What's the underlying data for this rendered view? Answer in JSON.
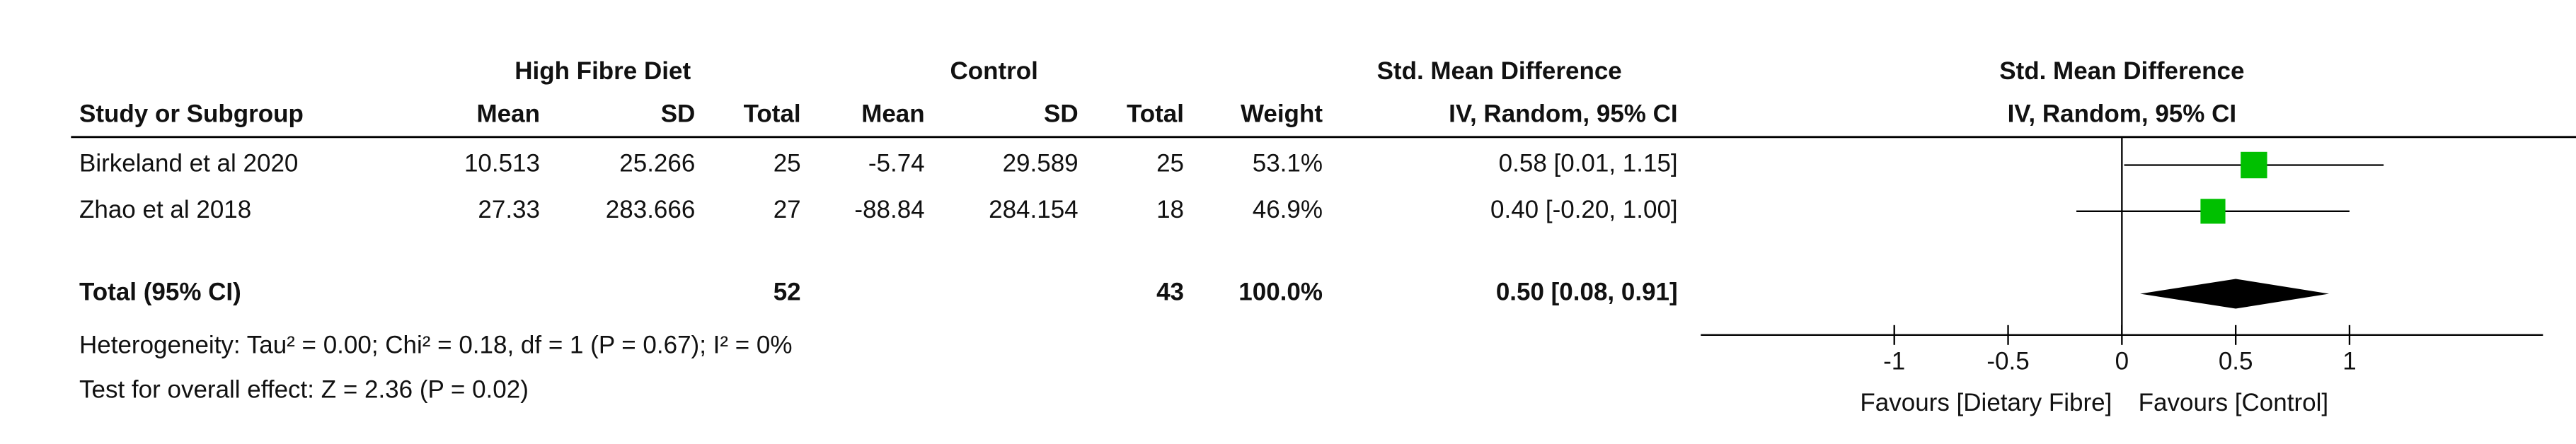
{
  "chart_data": {
    "type": "forest",
    "headers": {
      "groups": [
        "High Fibre Diet",
        "Control",
        "Std. Mean Difference"
      ],
      "columns": [
        "Study or Subgroup",
        "Mean",
        "SD",
        "Total",
        "Mean",
        "SD",
        "Total",
        "Weight",
        "IV, Random, 95% CI"
      ]
    },
    "plot_title": "Std. Mean Difference",
    "plot_subtitle": "IV, Random, 95% CI",
    "studies": [
      {
        "name": "Birkeland et al 2020",
        "exp_mean": 10.513,
        "exp_sd": 25.266,
        "exp_total": 25,
        "ctrl_mean": -5.74,
        "ctrl_sd": 29.589,
        "ctrl_total": 25,
        "weight": 53.1,
        "weight_label": "53.1%",
        "smd": 0.58,
        "ci_low": 0.01,
        "ci_high": 1.15,
        "ci_label": "0.58 [0.01, 1.15]"
      },
      {
        "name": "Zhao et al 2018",
        "exp_mean": 27.33,
        "exp_sd": 283.666,
        "exp_total": 27,
        "ctrl_mean": -88.84,
        "ctrl_sd": 284.154,
        "ctrl_total": 18,
        "weight": 46.9,
        "weight_label": "46.9%",
        "smd": 0.4,
        "ci_low": -0.2,
        "ci_high": 1.0,
        "ci_label": "0.40 [-0.20, 1.00]"
      }
    ],
    "total": {
      "name": "Total (95% CI)",
      "exp_total": 52,
      "ctrl_total": 43,
      "weight": 100,
      "weight_label": "100.0%",
      "smd": 0.5,
      "ci_low": 0.08,
      "ci_high": 0.91,
      "ci_label": "0.50 [0.08, 0.91]"
    },
    "heterogeneity": "Heterogeneity: Tau² = 0.00; Chi² = 0.18, df = 1 (P = 0.67); I² = 0%",
    "overall_effect": "Test for overall effect: Z = 2.36 (P = 0.02)",
    "xlim": [
      -1.85,
      1.85
    ],
    "xticks": [
      -1,
      -0.5,
      0,
      0.5,
      1
    ],
    "favours_left": "Favours [Dietary Fibre]",
    "favours_right": "Favours [Control]",
    "study_color": "#00c000",
    "total_color": "#000000"
  }
}
